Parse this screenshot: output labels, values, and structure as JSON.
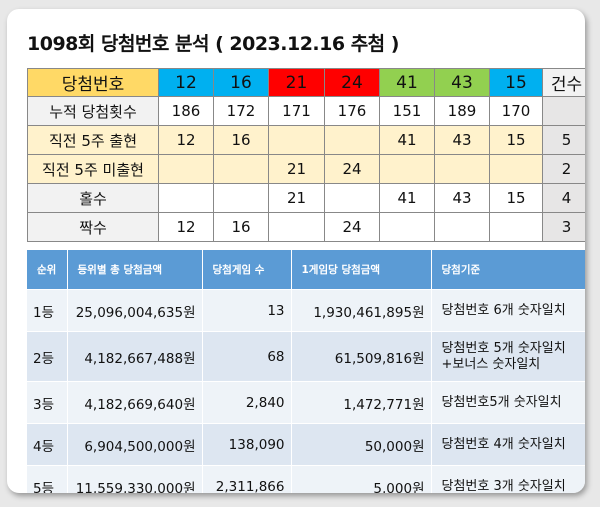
{
  "title": "1098회 당첨번호 분석 ( 2023.12.16 추첨 )",
  "top_table": {
    "header_label": "당첨번호",
    "count_label": "건수",
    "numbers": [
      "12",
      "16",
      "21",
      "24",
      "41",
      "43",
      "15"
    ],
    "ball_colors": [
      "#00b0f0",
      "#00b0f0",
      "#ff0000",
      "#ff0000",
      "#92d050",
      "#92d050",
      "#00b0f0"
    ],
    "rows": [
      {
        "label": "누적 당첨횟수",
        "cells": [
          "186",
          "172",
          "171",
          "176",
          "151",
          "189",
          "170"
        ],
        "count": ""
      },
      {
        "label": "직전 5주 출현",
        "cells": [
          "12",
          "16",
          "",
          "",
          "41",
          "43",
          "15"
        ],
        "count": "5"
      },
      {
        "label": "직전 5주 미출현",
        "cells": [
          "",
          "",
          "21",
          "24",
          "",
          "",
          ""
        ],
        "count": "2"
      },
      {
        "label": "홀수",
        "cells": [
          "",
          "",
          "21",
          "",
          "41",
          "43",
          "15"
        ],
        "count": "4"
      },
      {
        "label": "짝수",
        "cells": [
          "12",
          "16",
          "",
          "24",
          "",
          "",
          ""
        ],
        "count": "3"
      }
    ]
  },
  "prize_table": {
    "headers": [
      "순위",
      "등위별 총 당첨금액",
      "당첨게임 수",
      "1게임당 당첨금액",
      "당첨기준"
    ],
    "rows": [
      {
        "rank": "1등",
        "total": "25,096,004,635원",
        "games": "13",
        "per_game": "1,930,461,895원",
        "criteria": [
          "당첨번호 6개 숫자일치"
        ]
      },
      {
        "rank": "2등",
        "total": "4,182,667,488원",
        "games": "68",
        "per_game": "61,509,816원",
        "criteria": [
          "당첨번호 5개 숫자일치",
          "+보너스 숫자일치"
        ]
      },
      {
        "rank": "3등",
        "total": "4,182,669,640원",
        "games": "2,840",
        "per_game": "1,472,771원",
        "criteria": [
          "당첨번호5개 숫자일치"
        ]
      },
      {
        "rank": "4등",
        "total": "6,904,500,000원",
        "games": "138,090",
        "per_game": "50,000원",
        "criteria": [
          "당첨번호 4개 숫자일치"
        ]
      },
      {
        "rank": "5등",
        "total": "11,559,330,000원",
        "games": "2,311,866",
        "per_game": "5,000원",
        "criteria": [
          "당첨번호 3개 숫자일치"
        ]
      }
    ]
  }
}
